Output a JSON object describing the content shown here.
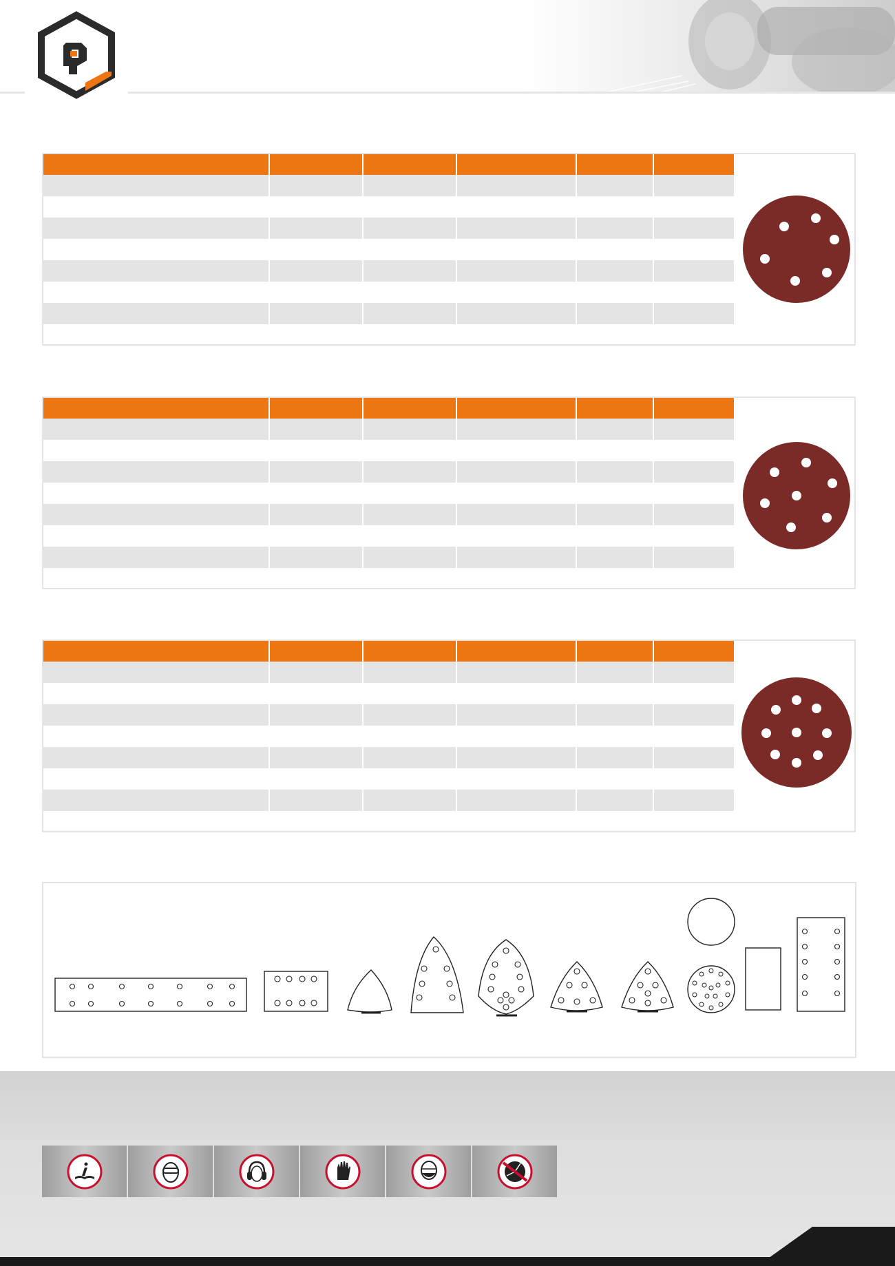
{
  "colors": {
    "accent": "#ee7612",
    "row_alt": "#e4e4e4",
    "disc": "#7a2b28",
    "logo_dark": "#2b2b2b",
    "footer_bar": "#1a1a1a"
  },
  "header": {
    "logo": {
      "icon": "brand-hexagon-logo-icon"
    },
    "photo": {
      "icon": "power-tool-photo"
    }
  },
  "products": [
    {
      "image": {
        "icon": "sanding-disc-6-holes-icon",
        "holes": 6
      },
      "table": {
        "columns": 6,
        "rows": 8
      }
    },
    {
      "image": {
        "icon": "sanding-disc-7-holes-icon",
        "holes": 7
      },
      "table": {
        "columns": 6,
        "rows": 8
      }
    },
    {
      "image": {
        "icon": "sanding-disc-9-holes-icon",
        "holes": 9
      },
      "table": {
        "columns": 6,
        "rows": 8
      }
    }
  ],
  "shapes": [
    {
      "icon": "long-strip-14-holes-icon"
    },
    {
      "icon": "rectangle-8-holes-icon"
    },
    {
      "icon": "delta-no-holes-icon"
    },
    {
      "icon": "iron-shape-8-holes-icon"
    },
    {
      "icon": "iron-shape-11-holes-icon"
    },
    {
      "icon": "triangle-6-holes-icon"
    },
    {
      "icon": "triangle-7-holes-icon"
    },
    {
      "icon": "round-no-holes-icon"
    },
    {
      "icon": "round-multi-holes-icon"
    },
    {
      "icon": "rectangle-no-holes-icon"
    },
    {
      "icon": "strip-10-holes-icon"
    }
  ],
  "safety": [
    {
      "icon": "read-manual-icon"
    },
    {
      "icon": "eye-protection-icon"
    },
    {
      "icon": "ear-protection-icon"
    },
    {
      "icon": "hand-protection-icon"
    },
    {
      "icon": "mask-protection-icon"
    },
    {
      "icon": "no-damaged-disc-icon"
    }
  ]
}
